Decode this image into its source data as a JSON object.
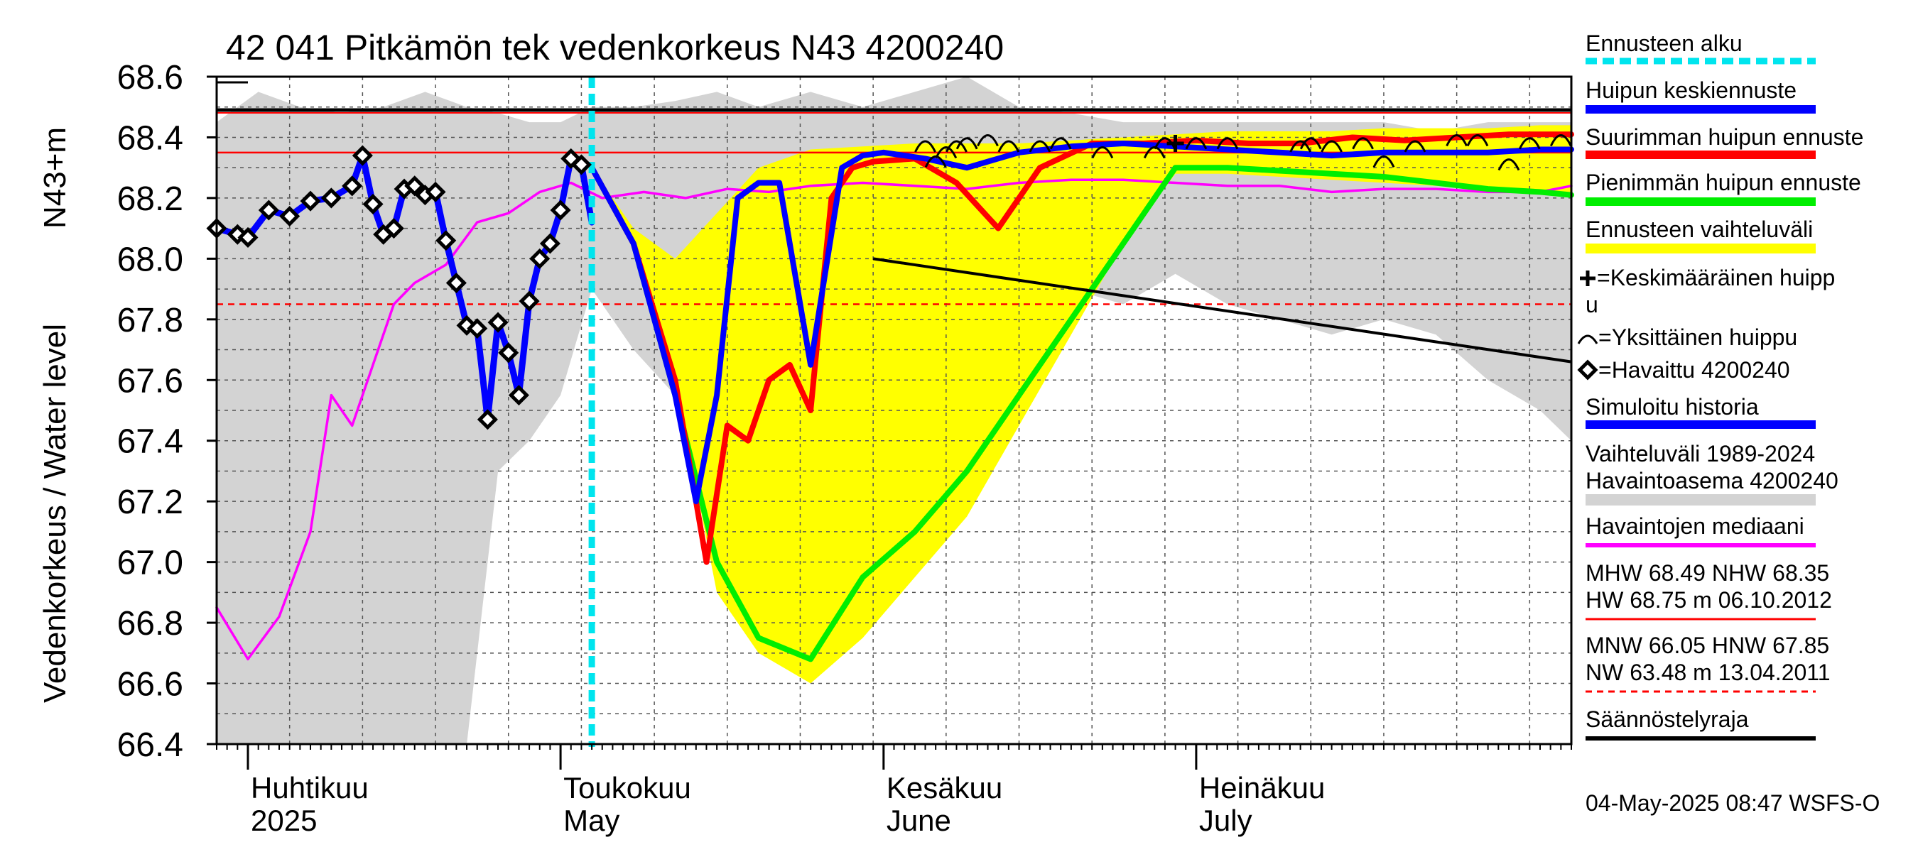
{
  "chart_data": {
    "type": "line",
    "title": "42 041 Pitkämön tek vedenkorkeus N43 4200240",
    "ylabel": "Vedenkorkeus / Water level",
    "yunit": "N43+m",
    "ylim": [
      66.4,
      68.6
    ],
    "yticks": [
      "68.6",
      "68.4",
      "68.2",
      "68.0",
      "67.8",
      "67.6",
      "67.4",
      "67.2",
      "67.0",
      "66.8",
      "66.6",
      "66.4"
    ],
    "xlim": [
      "2025-03-29",
      "2025-08-06"
    ],
    "month_labels": [
      {
        "fi": "Huhtikuu",
        "en": "2025",
        "date": "2025-04-01"
      },
      {
        "fi": "Toukokuu",
        "en": "May",
        "date": "2025-05-01"
      },
      {
        "fi": "Kesäkuu",
        "en": "June",
        "date": "2025-06-01"
      },
      {
        "fi": "Heinäkuu",
        "en": "July",
        "date": "2025-07-01"
      }
    ],
    "forecast_start": "2025-05-04",
    "reference_lines": {
      "MHW": 68.49,
      "NHW": 68.35,
      "HNW": 67.85
    },
    "historical_range": {
      "name": "Vaihteluväli 1989-2024 Havaintoasema 4200240",
      "color": "#d3d3d3",
      "x": [
        "2025-03-29",
        "2025-04-02",
        "2025-04-06",
        "2025-04-10",
        "2025-04-14",
        "2025-04-18",
        "2025-04-22",
        "2025-04-25",
        "2025-04-28",
        "2025-05-01",
        "2025-05-04",
        "2025-05-08",
        "2025-05-12",
        "2025-05-16",
        "2025-05-20",
        "2025-05-25",
        "2025-05-30",
        "2025-06-04",
        "2025-06-09",
        "2025-06-14",
        "2025-06-19",
        "2025-06-24",
        "2025-06-29",
        "2025-07-04",
        "2025-07-09",
        "2025-07-14",
        "2025-07-19",
        "2025-07-24",
        "2025-07-29",
        "2025-08-03",
        "2025-08-06"
      ],
      "upper": [
        68.45,
        68.55,
        68.5,
        68.48,
        68.5,
        68.55,
        68.5,
        68.48,
        68.45,
        68.45,
        68.5,
        68.5,
        68.52,
        68.55,
        68.5,
        68.55,
        68.5,
        68.55,
        68.6,
        68.5,
        68.48,
        68.45,
        68.45,
        68.45,
        68.45,
        68.45,
        68.45,
        68.42,
        68.45,
        68.45,
        68.45
      ],
      "lower": [
        66.4,
        66.4,
        66.4,
        66.4,
        66.4,
        66.4,
        66.4,
        67.3,
        67.4,
        67.55,
        67.9,
        67.7,
        67.55,
        67.65,
        67.7,
        67.7,
        67.75,
        67.8,
        67.9,
        68.0,
        67.9,
        67.85,
        67.95,
        67.85,
        67.8,
        67.75,
        67.8,
        67.75,
        67.6,
        67.5,
        67.4
      ]
    },
    "forecast_range": {
      "name": "Ennusteen vaihteluväli",
      "color": "#ffff00",
      "x": [
        "2025-05-04",
        "2025-05-08",
        "2025-05-12",
        "2025-05-16",
        "2025-05-20",
        "2025-05-25",
        "2025-05-30",
        "2025-06-04",
        "2025-06-09",
        "2025-06-14",
        "2025-06-19",
        "2025-06-24",
        "2025-06-29",
        "2025-07-04",
        "2025-07-09",
        "2025-07-14",
        "2025-07-19",
        "2025-07-24",
        "2025-07-29",
        "2025-08-03",
        "2025-08-06"
      ],
      "upper": [
        68.3,
        68.1,
        68.0,
        68.15,
        68.3,
        68.36,
        68.37,
        68.38,
        68.38,
        68.38,
        68.39,
        68.4,
        68.41,
        68.42,
        68.42,
        68.42,
        68.43,
        68.43,
        68.43,
        68.44,
        68.44
      ],
      "lower": [
        68.3,
        68.05,
        67.6,
        66.9,
        66.7,
        66.6,
        66.75,
        66.95,
        67.15,
        67.45,
        67.75,
        68.05,
        68.28,
        68.28,
        68.27,
        68.26,
        68.25,
        68.24,
        68.23,
        68.22,
        68.22
      ]
    },
    "series": [
      {
        "name": "Havaintojen mediaani",
        "color": "#ff00ff",
        "x": [
          "2025-03-29",
          "2025-04-01",
          "2025-04-04",
          "2025-04-07",
          "2025-04-09",
          "2025-04-11",
          "2025-04-13",
          "2025-04-15",
          "2025-04-17",
          "2025-04-20",
          "2025-04-23",
          "2025-04-26",
          "2025-04-29",
          "2025-05-02",
          "2025-05-05",
          "2025-05-09",
          "2025-05-13",
          "2025-05-17",
          "2025-05-21",
          "2025-05-25",
          "2025-05-30",
          "2025-06-04",
          "2025-06-09",
          "2025-06-14",
          "2025-06-19",
          "2025-06-24",
          "2025-06-29",
          "2025-07-04",
          "2025-07-09",
          "2025-07-14",
          "2025-07-19",
          "2025-07-24",
          "2025-07-29",
          "2025-08-03",
          "2025-08-06"
        ],
        "values": [
          66.85,
          66.68,
          66.82,
          67.1,
          67.55,
          67.45,
          67.65,
          67.85,
          67.92,
          67.98,
          68.12,
          68.15,
          68.22,
          68.25,
          68.2,
          68.22,
          68.2,
          68.23,
          68.22,
          68.24,
          68.25,
          68.24,
          68.23,
          68.25,
          68.26,
          68.26,
          68.25,
          68.24,
          68.24,
          68.22,
          68.23,
          68.23,
          68.22,
          68.22,
          68.24
        ]
      },
      {
        "name": "Huipun keskiennuste",
        "color": "#0000ff",
        "x": [
          "2025-05-04",
          "2025-05-08",
          "2025-05-12",
          "2025-05-14",
          "2025-05-16",
          "2025-05-18",
          "2025-05-20",
          "2025-05-22",
          "2025-05-25",
          "2025-05-28",
          "2025-05-30",
          "2025-06-01",
          "2025-06-05",
          "2025-06-09",
          "2025-06-14",
          "2025-06-19",
          "2025-06-24",
          "2025-06-29",
          "2025-07-04",
          "2025-07-09",
          "2025-07-14",
          "2025-07-19",
          "2025-07-24",
          "2025-07-29",
          "2025-08-03",
          "2025-08-06"
        ],
        "values": [
          68.3,
          68.05,
          67.55,
          67.2,
          67.55,
          68.2,
          68.25,
          68.25,
          67.65,
          68.3,
          68.34,
          68.35,
          68.33,
          68.3,
          68.35,
          68.37,
          68.38,
          68.37,
          68.36,
          68.35,
          68.34,
          68.35,
          68.35,
          68.35,
          68.36,
          68.36
        ]
      },
      {
        "name": "Suurimman huipun ennuste",
        "color": "#ff0000",
        "x": [
          "2025-05-04",
          "2025-05-08",
          "2025-05-12",
          "2025-05-15",
          "2025-05-17",
          "2025-05-19",
          "2025-05-21",
          "2025-05-23",
          "2025-05-25",
          "2025-05-27",
          "2025-05-29",
          "2025-05-31",
          "2025-06-04",
          "2025-06-08",
          "2025-06-12",
          "2025-06-16",
          "2025-06-21",
          "2025-06-26",
          "2025-07-01",
          "2025-07-06",
          "2025-07-11",
          "2025-07-16",
          "2025-07-21",
          "2025-07-26",
          "2025-07-31",
          "2025-08-06"
        ],
        "values": [
          68.3,
          68.05,
          67.6,
          67.0,
          67.45,
          67.4,
          67.6,
          67.65,
          67.5,
          68.2,
          68.3,
          68.32,
          68.33,
          68.25,
          68.1,
          68.3,
          68.38,
          68.38,
          68.39,
          68.38,
          68.38,
          68.4,
          68.39,
          68.4,
          68.41,
          68.41
        ]
      },
      {
        "name": "Pienimmän huipun ennuste",
        "color": "#00ee00",
        "x": [
          "2025-05-04",
          "2025-05-08",
          "2025-05-12",
          "2025-05-16",
          "2025-05-20",
          "2025-05-25",
          "2025-05-30",
          "2025-06-04",
          "2025-06-09",
          "2025-06-14",
          "2025-06-19",
          "2025-06-24",
          "2025-06-29",
          "2025-07-04",
          "2025-07-09",
          "2025-07-14",
          "2025-07-19",
          "2025-07-24",
          "2025-07-29",
          "2025-08-03",
          "2025-08-06"
        ],
        "values": [
          68.3,
          68.05,
          67.55,
          67.0,
          66.75,
          66.68,
          66.95,
          67.1,
          67.3,
          67.55,
          67.8,
          68.05,
          68.3,
          68.3,
          68.29,
          68.28,
          68.27,
          68.25,
          68.23,
          68.22,
          68.21
        ]
      },
      {
        "name": "Simuloitu historia",
        "color": "#0000ff",
        "x": [
          "2025-03-29",
          "2025-04-01",
          "2025-04-03",
          "2025-04-05",
          "2025-04-07",
          "2025-04-09",
          "2025-04-11",
          "2025-04-12",
          "2025-04-13",
          "2025-04-14",
          "2025-04-15",
          "2025-04-16",
          "2025-04-17",
          "2025-04-18",
          "2025-04-19",
          "2025-04-20",
          "2025-04-21",
          "2025-04-22",
          "2025-04-23",
          "2025-04-24",
          "2025-04-25",
          "2025-04-26",
          "2025-04-27",
          "2025-04-28",
          "2025-04-29",
          "2025-04-30",
          "2025-05-01",
          "2025-05-02",
          "2025-05-03",
          "2025-05-04"
        ],
        "values": [
          68.1,
          68.07,
          68.16,
          68.14,
          68.19,
          68.2,
          68.24,
          68.34,
          68.18,
          68.08,
          68.1,
          68.23,
          68.24,
          68.21,
          68.22,
          68.06,
          67.92,
          67.78,
          67.77,
          67.47,
          67.79,
          67.69,
          67.55,
          67.86,
          68.0,
          68.05,
          68.16,
          68.33,
          68.31,
          68.12
        ]
      }
    ],
    "observed": {
      "name": "Havaittu 4200240",
      "x": [
        "2025-03-29",
        "2025-03-31",
        "2025-04-01",
        "2025-04-03",
        "2025-04-05",
        "2025-04-07",
        "2025-04-09",
        "2025-04-11",
        "2025-04-12",
        "2025-04-13",
        "2025-04-14",
        "2025-04-15",
        "2025-04-16",
        "2025-04-17",
        "2025-04-18",
        "2025-04-19",
        "2025-04-20",
        "2025-04-21",
        "2025-04-22",
        "2025-04-23",
        "2025-04-24",
        "2025-04-25",
        "2025-04-26",
        "2025-04-27",
        "2025-04-28",
        "2025-04-29",
        "2025-04-30",
        "2025-05-01",
        "2025-05-02",
        "2025-05-03"
      ],
      "values": [
        68.1,
        68.08,
        68.07,
        68.16,
        68.14,
        68.19,
        68.2,
        68.24,
        68.34,
        68.18,
        68.08,
        68.1,
        68.23,
        68.24,
        68.21,
        68.22,
        68.06,
        67.92,
        67.78,
        67.77,
        67.47,
        67.79,
        67.69,
        67.55,
        67.86,
        68.0,
        68.05,
        68.16,
        68.33,
        68.31
      ]
    },
    "single_peaks": {
      "name": "Yksittäinen huippu",
      "x": [
        "2025-06-05",
        "2025-06-06",
        "2025-06-07",
        "2025-06-08",
        "2025-06-09",
        "2025-06-11",
        "2025-06-13",
        "2025-06-16",
        "2025-06-18",
        "2025-06-22",
        "2025-06-27",
        "2025-06-28",
        "2025-07-01",
        "2025-07-04",
        "2025-07-11",
        "2025-07-12",
        "2025-07-14",
        "2025-07-17",
        "2025-07-19",
        "2025-07-22",
        "2025-07-26",
        "2025-07-28",
        "2025-07-31",
        "2025-08-02",
        "2025-08-05"
      ],
      "values": [
        68.38,
        68.33,
        68.36,
        68.38,
        68.39,
        68.4,
        68.38,
        68.38,
        68.39,
        68.36,
        68.36,
        68.39,
        68.39,
        68.39,
        68.38,
        68.39,
        68.38,
        68.39,
        68.33,
        68.38,
        68.4,
        68.4,
        68.32,
        68.39,
        68.4
      ]
    },
    "mean_peak": {
      "name": "Keskimääräinen huippu",
      "x": "2025-06-29",
      "value": 68.38
    },
    "annotation_line": {
      "from": {
        "x": "2025-05-31",
        "value": 68.0
      },
      "to": {
        "x": "2025-08-06",
        "value": 67.66
      }
    }
  },
  "legend": {
    "forecast_start": "Ennusteen alku",
    "peak_mean": "Huipun keskiennuste",
    "peak_max": "Suurimman huipun ennuste",
    "peak_min": "Pienimmän huipun ennuste",
    "forecast_range": "Ennusteen vaihteluväli",
    "mean_peak_line1": "=Keskimääräinen huipp",
    "mean_peak_line2": "u",
    "single_peak": "=Yksittäinen huippu",
    "observed": "=Havaittu 4200240",
    "simulated": "Simuloitu historia",
    "range_line1": "Vaihteluväli 1989-2024",
    "range_line2": " Havaintoasema 4200240",
    "median": "Havaintojen mediaani",
    "stats1": "MHW  68.49 NHW  68.35",
    "stats2": "HW  68.75 m 06.10.2012",
    "stats3": "MNW  66.05 HNW  67.85",
    "stats4": "NW  63.48 m 13.04.2011",
    "regulation": "Säännöstelyraja"
  },
  "footer": "04-May-2025 08:47 WSFS-O"
}
